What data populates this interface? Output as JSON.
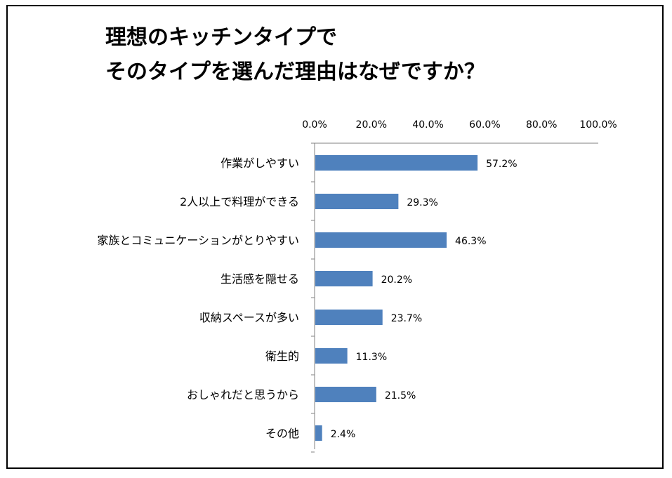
{
  "title_lines": [
    "理想のキッチンタイプで",
    "そのタイプを選んだ理由はなぜですか？"
  ],
  "chart_data": {
    "type": "bar",
    "orientation": "horizontal",
    "title": "理想のキッチンタイプで そのタイプを選んだ理由はなぜですか？",
    "categories": [
      "作業がしやすい",
      "2人以上で料理ができる",
      "家族とコミュニケーションがとりやすい",
      "生活感を隠せる",
      "収納スペースが多い",
      "衛生的",
      "おしゃれだと思うから",
      "その他"
    ],
    "values": [
      57.2,
      29.3,
      46.3,
      20.2,
      23.7,
      11.3,
      21.5,
      2.4
    ],
    "value_labels": [
      "57.2%",
      "29.3%",
      "46.3%",
      "20.2%",
      "23.7%",
      "11.3%",
      "21.5%",
      "2.4%"
    ],
    "xticks": [
      "0.0%",
      "20.0%",
      "40.0%",
      "60.0%",
      "80.0%",
      "100.0%"
    ],
    "xlim": [
      0,
      100
    ],
    "xaxis_position": "top",
    "grid": false,
    "legend": "none",
    "bar_color": "#4f81bd"
  }
}
